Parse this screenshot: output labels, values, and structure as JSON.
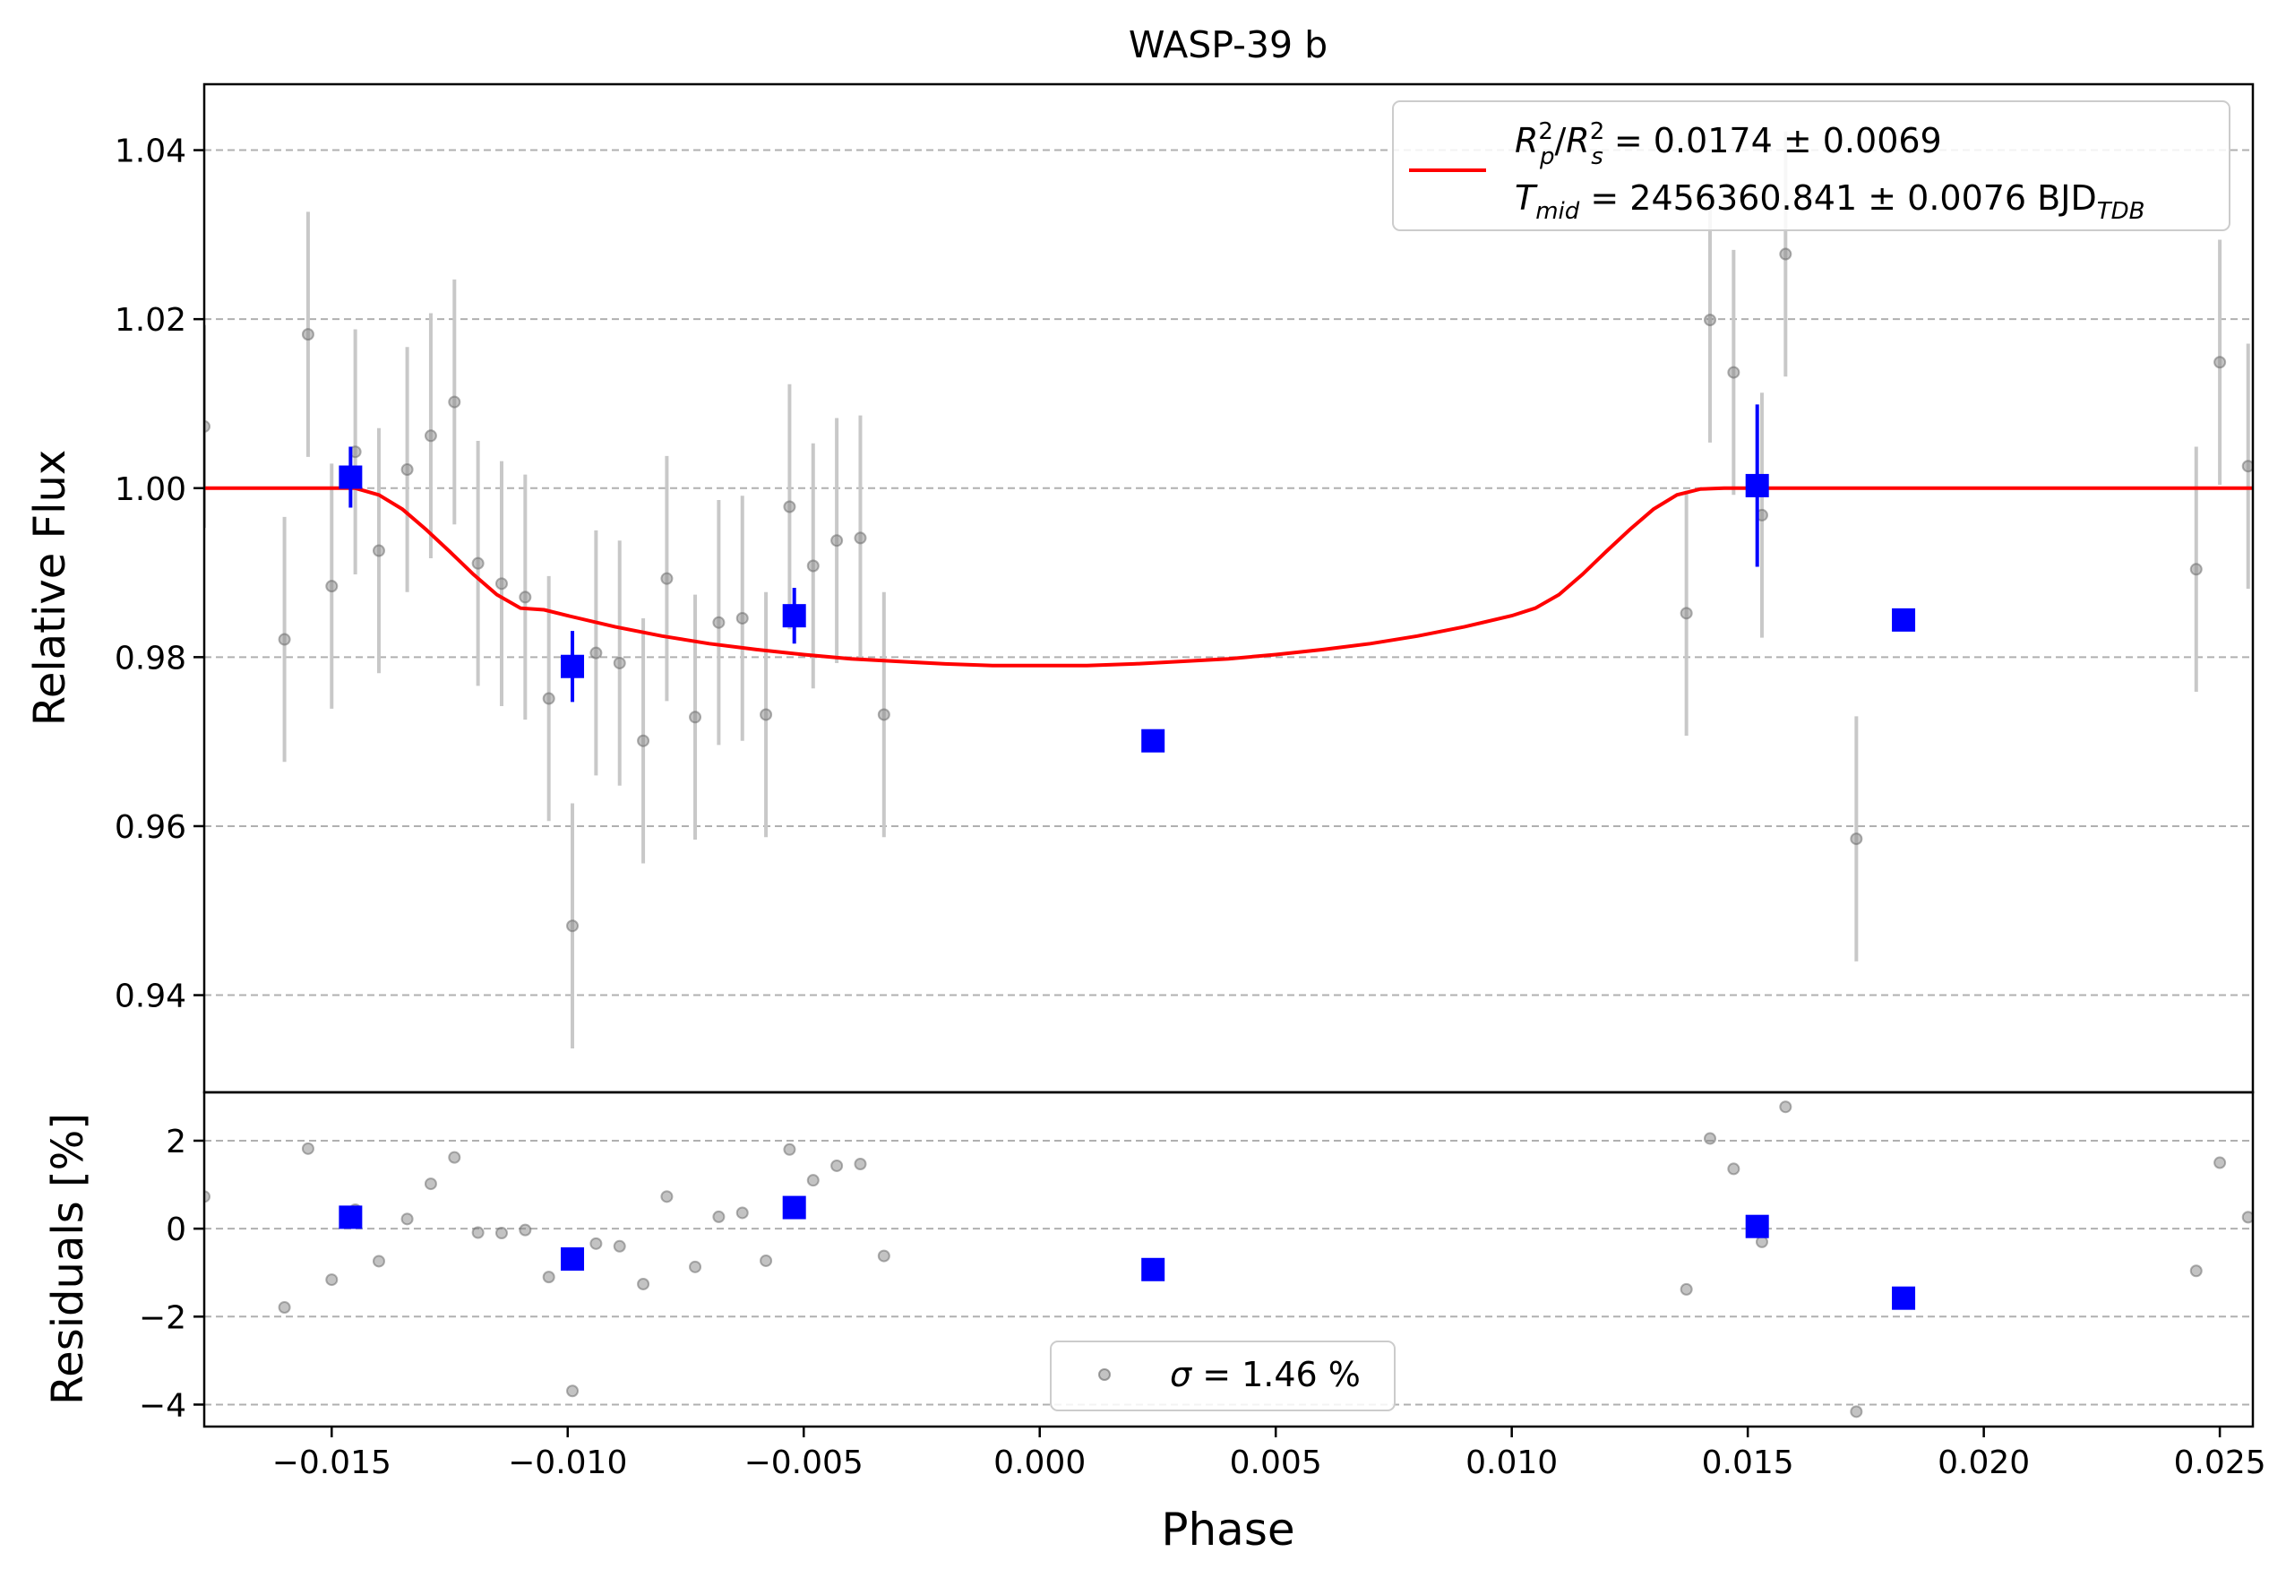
{
  "chart_data": [
    {
      "type": "scatter",
      "panel": "transit",
      "title": "WASP-39 b",
      "xlabel": "",
      "ylabel": "Relative Flux",
      "xlim": [
        -0.0177,
        0.0257
      ],
      "ylim": [
        0.9285,
        1.0478
      ],
      "yticks": [
        0.94,
        0.96,
        0.98,
        1.0,
        1.02,
        1.04
      ],
      "ytick_labels": [
        "0.94",
        "0.96",
        "0.98",
        "1.00",
        "1.02",
        "1.04"
      ],
      "grid": "horizontal dashed",
      "legend_position": "top-right",
      "legend": {
        "rp_label": "= 0.0174 ± 0.0069",
        "tmid_label": "= 2456360.841 ± 0.0076 BJD",
        "tmid_sub": "TDB"
      },
      "series": [
        {
          "role": "unbinned",
          "color": "#888888",
          "points": [
            [
              -0.0177,
              1.0073,
              0.012
            ],
            [
              -0.016,
              0.9821,
              0.0145
            ],
            [
              -0.0155,
              1.0182,
              0.0145
            ],
            [
              -0.015,
              0.9884,
              0.0145
            ],
            [
              -0.0145,
              1.0043,
              0.0145
            ],
            [
              -0.014,
              0.9926,
              0.0145
            ],
            [
              -0.0134,
              1.0022,
              0.0145
            ],
            [
              -0.0129,
              1.0062,
              0.0145
            ],
            [
              -0.0124,
              1.0102,
              0.0145
            ],
            [
              -0.0119,
              0.9911,
              0.0145
            ],
            [
              -0.0114,
              0.9887,
              0.0145
            ],
            [
              -0.0109,
              0.9871,
              0.0145
            ],
            [
              -0.0104,
              0.9751,
              0.0145
            ],
            [
              -0.0099,
              0.9482,
              0.0145
            ],
            [
              -0.0094,
              0.9805,
              0.0145
            ],
            [
              -0.0089,
              0.9793,
              0.0145
            ],
            [
              -0.0084,
              0.9701,
              0.0145
            ],
            [
              -0.0079,
              0.9893,
              0.0145
            ],
            [
              -0.0073,
              0.9729,
              0.0145
            ],
            [
              -0.0068,
              0.9841,
              0.0145
            ],
            [
              -0.0063,
              0.9846,
              0.0145
            ],
            [
              -0.0058,
              0.9732,
              0.0145
            ],
            [
              -0.0053,
              0.9978,
              0.0145
            ],
            [
              -0.0048,
              0.9908,
              0.0145
            ],
            [
              -0.0043,
              0.9938,
              0.0145
            ],
            [
              -0.0038,
              0.9941,
              0.0145
            ],
            [
              -0.0033,
              0.9732,
              0.0145
            ],
            [
              0.0137,
              0.9852,
              0.0145
            ],
            [
              0.0142,
              1.0199,
              0.0145
            ],
            [
              0.0147,
              1.0137,
              0.0145
            ],
            [
              0.0153,
              0.9968,
              0.0145
            ],
            [
              0.0158,
              1.0277,
              0.0145
            ],
            [
              0.0173,
              0.9585,
              0.0145
            ],
            [
              0.0245,
              0.9904,
              0.0145
            ],
            [
              0.025,
              1.0149,
              0.0145
            ],
            [
              0.0256,
              1.0026,
              0.0145
            ]
          ]
        },
        {
          "role": "binned",
          "color": "#0000ff",
          "points": [
            [
              -0.0146,
              1.0013,
              0.0036
            ],
            [
              -0.0099,
              0.9789,
              0.0042
            ],
            [
              -0.0052,
              0.9849,
              0.0033
            ],
            [
              0.0024,
              0.9701,
              0.0
            ],
            [
              0.0152,
              1.0003,
              0.0096
            ],
            [
              0.0183,
              0.9844,
              0.0
            ]
          ]
        },
        {
          "role": "model",
          "color": "#ff0000",
          "points": [
            [
              -0.0177,
              1.0
            ],
            [
              -0.0145,
              1.0
            ],
            [
              -0.014,
              0.9992
            ],
            [
              -0.0135,
              0.9975
            ],
            [
              -0.013,
              0.9951
            ],
            [
              -0.0125,
              0.9925
            ],
            [
              -0.012,
              0.9898
            ],
            [
              -0.0115,
              0.9874
            ],
            [
              -0.011,
              0.9858
            ],
            [
              -0.0105,
              0.9856
            ],
            [
              -0.01,
              0.9849
            ],
            [
              -0.009,
              0.9836
            ],
            [
              -0.008,
              0.9825
            ],
            [
              -0.007,
              0.9816
            ],
            [
              -0.006,
              0.9809
            ],
            [
              -0.005,
              0.9803
            ],
            [
              -0.004,
              0.9798
            ],
            [
              -0.003,
              0.9795
            ],
            [
              -0.002,
              0.9792
            ],
            [
              -0.001,
              0.979
            ],
            [
              0.0,
              0.979
            ],
            [
              0.001,
              0.979
            ],
            [
              0.002,
              0.9792
            ],
            [
              0.003,
              0.9795
            ],
            [
              0.004,
              0.9798
            ],
            [
              0.005,
              0.9803
            ],
            [
              0.006,
              0.9809
            ],
            [
              0.007,
              0.9816
            ],
            [
              0.008,
              0.9825
            ],
            [
              0.009,
              0.9836
            ],
            [
              0.01,
              0.9849
            ],
            [
              0.0105,
              0.9858
            ],
            [
              0.011,
              0.9874
            ],
            [
              0.0115,
              0.9898
            ],
            [
              0.012,
              0.9925
            ],
            [
              0.0125,
              0.9951
            ],
            [
              0.013,
              0.9975
            ],
            [
              0.0135,
              0.9992
            ],
            [
              0.014,
              0.9999
            ],
            [
              0.0145,
              1.0
            ],
            [
              0.0257,
              1.0
            ]
          ]
        }
      ]
    },
    {
      "type": "scatter",
      "panel": "residuals",
      "title": "",
      "xlabel": "Phase",
      "ylabel": "Residuals [%]",
      "xlim": [
        -0.0177,
        0.0257
      ],
      "ylim": [
        -4.5,
        3.1
      ],
      "xticks": [
        -0.015,
        -0.01,
        -0.005,
        0.0,
        0.005,
        0.01,
        0.015,
        0.02,
        0.025
      ],
      "xtick_labels": [
        "−0.015",
        "−0.010",
        "−0.005",
        "0.000",
        "0.005",
        "0.010",
        "0.015",
        "0.020",
        "0.025"
      ],
      "yticks": [
        -4,
        -2,
        0,
        2
      ],
      "ytick_labels": [
        "−4",
        "−2",
        "0",
        "2"
      ],
      "grid": "horizontal dashed",
      "legend_position": "bottom-center",
      "legend": {
        "label": "= 1.46 %"
      },
      "series": [
        {
          "role": "unbinned",
          "color": "#888888",
          "points": [
            [
              -0.0177,
              0.73
            ],
            [
              -0.016,
              -1.79
            ],
            [
              -0.0155,
              1.82
            ],
            [
              -0.015,
              -1.16
            ],
            [
              -0.0145,
              0.43
            ],
            [
              -0.014,
              -0.74
            ],
            [
              -0.0134,
              0.22
            ],
            [
              -0.0129,
              1.02
            ],
            [
              -0.0124,
              1.62
            ],
            [
              -0.0119,
              -0.09
            ],
            [
              -0.0114,
              -0.1
            ],
            [
              -0.0109,
              -0.03
            ],
            [
              -0.0104,
              -1.1
            ],
            [
              -0.0099,
              -3.69
            ],
            [
              -0.0094,
              -0.34
            ],
            [
              -0.0089,
              -0.4
            ],
            [
              -0.0084,
              -1.26
            ],
            [
              -0.0079,
              0.73
            ],
            [
              -0.0073,
              -0.87
            ],
            [
              -0.0068,
              0.27
            ],
            [
              -0.0063,
              0.36
            ],
            [
              -0.0058,
              -0.73
            ],
            [
              -0.0053,
              1.8
            ],
            [
              -0.0048,
              1.1
            ],
            [
              -0.0043,
              1.43
            ],
            [
              -0.0038,
              1.47
            ],
            [
              -0.0033,
              -0.62
            ],
            [
              0.0137,
              -1.38
            ],
            [
              0.0142,
              2.05
            ],
            [
              0.0147,
              1.36
            ],
            [
              0.0153,
              -0.3
            ],
            [
              0.0158,
              2.77
            ],
            [
              0.0173,
              -4.16
            ],
            [
              0.0245,
              -0.96
            ],
            [
              0.025,
              1.5
            ],
            [
              0.0256,
              0.26
            ]
          ]
        },
        {
          "role": "binned",
          "color": "#0000ff",
          "points": [
            [
              -0.0146,
              0.26
            ],
            [
              -0.0099,
              -0.69
            ],
            [
              -0.0052,
              0.48
            ],
            [
              0.0024,
              -0.93
            ],
            [
              0.0152,
              0.05
            ],
            [
              0.0183,
              -1.58
            ]
          ]
        }
      ]
    }
  ]
}
